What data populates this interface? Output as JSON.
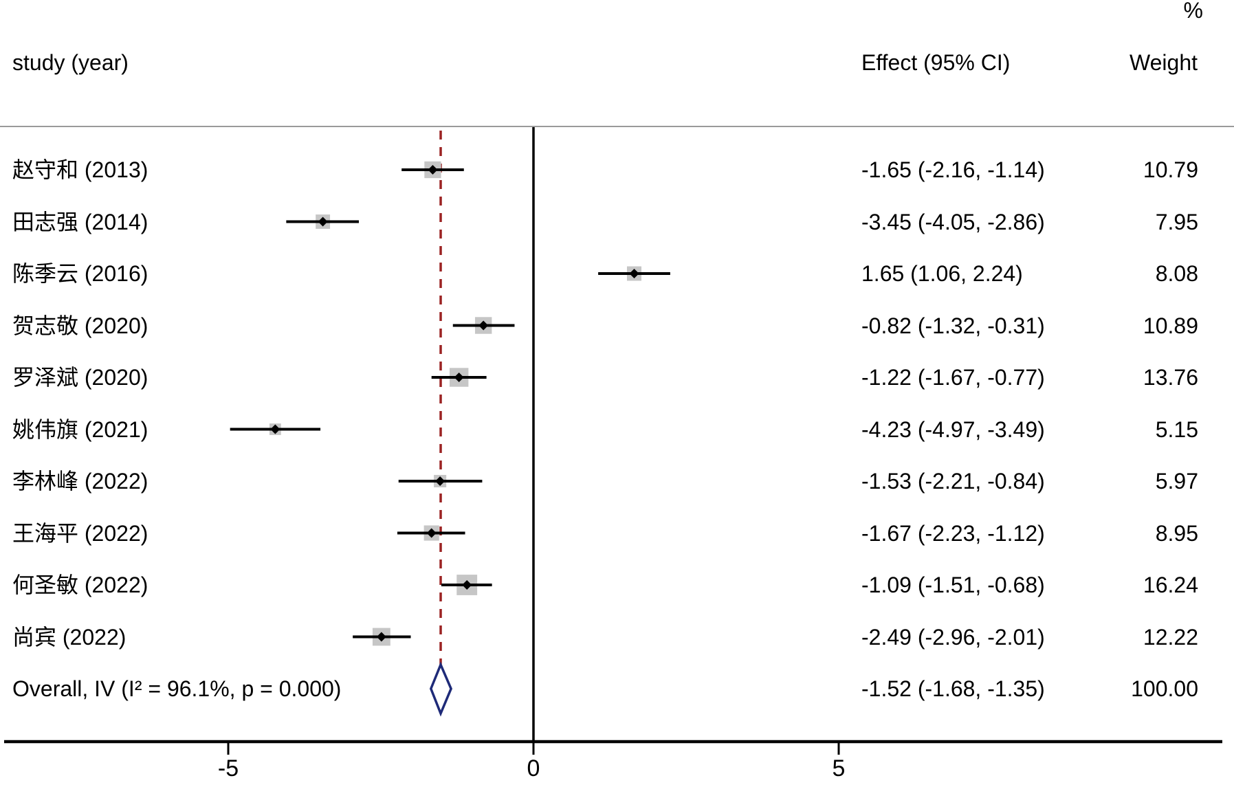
{
  "header": {
    "percent_symbol": "%",
    "study_col": "study (year)",
    "effect_col": "Effect (95% CI)",
    "weight_col": "Weight"
  },
  "chart_data": {
    "type": "forest",
    "x_axis": {
      "ticks": [
        -5,
        0,
        5
      ],
      "tick_labels": [
        "-5",
        "0",
        "5"
      ],
      "null_line_value": 0,
      "overall_dashed_line_value": -1.52
    },
    "studies": [
      {
        "label": "赵守和 (2013)",
        "effect": -1.65,
        "ci_low": -2.16,
        "ci_high": -1.14,
        "effect_label": "-1.65 (-2.16, -1.14)",
        "weight": 10.79,
        "weight_label": "10.79"
      },
      {
        "label": "田志强 (2014)",
        "effect": -3.45,
        "ci_low": -4.05,
        "ci_high": -2.86,
        "effect_label": "-3.45 (-4.05, -2.86)",
        "weight": 7.95,
        "weight_label": "7.95"
      },
      {
        "label": "陈季云 (2016)",
        "effect": 1.65,
        "ci_low": 1.06,
        "ci_high": 2.24,
        "effect_label": "1.65 (1.06, 2.24)",
        "weight": 8.08,
        "weight_label": "8.08"
      },
      {
        "label": "贺志敬 (2020)",
        "effect": -0.82,
        "ci_low": -1.32,
        "ci_high": -0.31,
        "effect_label": "-0.82 (-1.32, -0.31)",
        "weight": 10.89,
        "weight_label": "10.89"
      },
      {
        "label": "罗泽斌 (2020)",
        "effect": -1.22,
        "ci_low": -1.67,
        "ci_high": -0.77,
        "effect_label": "-1.22 (-1.67, -0.77)",
        "weight": 13.76,
        "weight_label": "13.76"
      },
      {
        "label": "姚伟旗 (2021)",
        "effect": -4.23,
        "ci_low": -4.97,
        "ci_high": -3.49,
        "effect_label": "-4.23 (-4.97, -3.49)",
        "weight": 5.15,
        "weight_label": "5.15"
      },
      {
        "label": "李林峰 (2022)",
        "effect": -1.53,
        "ci_low": -2.21,
        "ci_high": -0.84,
        "effect_label": "-1.53 (-2.21, -0.84)",
        "weight": 5.97,
        "weight_label": "5.97"
      },
      {
        "label": "王海平 (2022)",
        "effect": -1.67,
        "ci_low": -2.23,
        "ci_high": -1.12,
        "effect_label": "-1.67 (-2.23, -1.12)",
        "weight": 8.95,
        "weight_label": "8.95"
      },
      {
        "label": "何圣敏 (2022)",
        "effect": -1.09,
        "ci_low": -1.51,
        "ci_high": -0.68,
        "effect_label": "-1.09 (-1.51, -0.68)",
        "weight": 16.24,
        "weight_label": "16.24"
      },
      {
        "label": "尚宾 (2022)",
        "effect": -2.49,
        "ci_low": -2.96,
        "ci_high": -2.01,
        "effect_label": "-2.49 (-2.96, -2.01)",
        "weight": 12.22,
        "weight_label": "12.22"
      }
    ],
    "overall": {
      "label": "Overall, IV (I² = 96.1%, p = 0.000)",
      "effect": -1.52,
      "ci_low": -1.68,
      "ci_high": -1.35,
      "effect_label": "-1.52 (-1.68, -1.35)",
      "weight": 100.0,
      "weight_label": "100.00"
    }
  },
  "colors": {
    "box": "#c6c6c6",
    "ci_line": "#000000",
    "point_marker": "#000000",
    "overall_diamond_stroke": "#1e2a78",
    "overall_diamond_fill": "#ffffff",
    "null_line": "#000000",
    "overall_dashed_line": "#9b2222",
    "separator": "#9a9a9a",
    "axis": "#000000"
  }
}
